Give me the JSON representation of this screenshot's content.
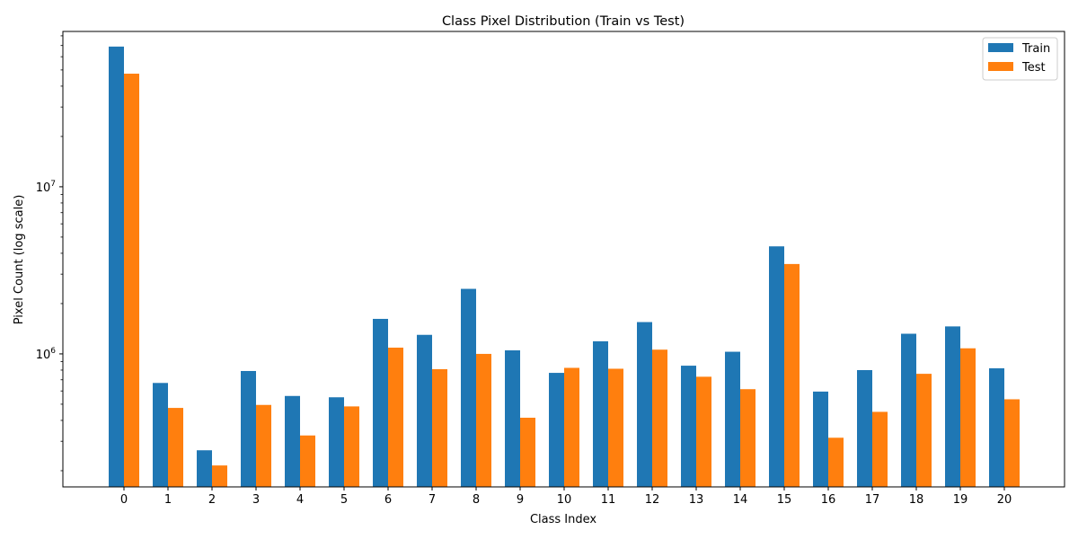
{
  "chart_data": {
    "type": "bar",
    "title": "Class Pixel Distribution (Train vs Test)",
    "xlabel": "Class Index",
    "ylabel": "Pixel Count (log scale)",
    "yscale": "log",
    "ylim": [
      160000,
      85000000
    ],
    "yticks": [
      {
        "value": 1000000,
        "base": "10",
        "exp": "6"
      },
      {
        "value": 10000000,
        "base": "10",
        "exp": "7"
      }
    ],
    "grid": false,
    "legend_position": "top-right",
    "categories": [
      "0",
      "1",
      "2",
      "3",
      "4",
      "5",
      "6",
      "7",
      "8",
      "9",
      "10",
      "11",
      "12",
      "13",
      "14",
      "15",
      "16",
      "17",
      "18",
      "19",
      "20"
    ],
    "series": [
      {
        "name": "Train",
        "color": "#1f77b4",
        "values": [
          69000000,
          670000,
          265000,
          790000,
          560000,
          550000,
          1620000,
          1300000,
          2450000,
          1050000,
          770000,
          1190000,
          1550000,
          850000,
          1030000,
          4400000,
          595000,
          800000,
          1320000,
          1460000,
          820000
        ]
      },
      {
        "name": "Test",
        "color": "#ff7f0e",
        "values": [
          47500000,
          475000,
          215000,
          495000,
          325000,
          485000,
          1090000,
          810000,
          1000000,
          415000,
          825000,
          815000,
          1060000,
          730000,
          615000,
          3450000,
          315000,
          450000,
          760000,
          1080000,
          535000
        ]
      }
    ]
  }
}
